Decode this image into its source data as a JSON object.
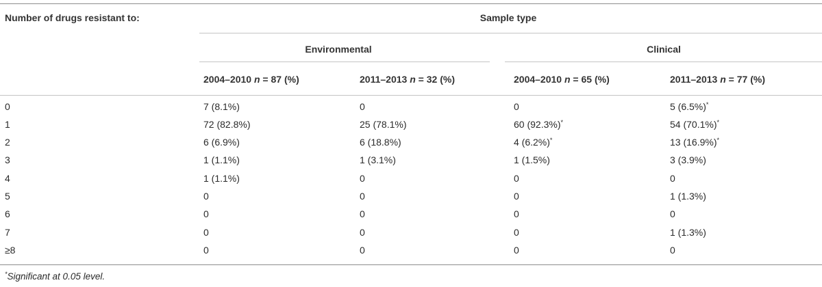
{
  "table": {
    "row_header": "Number of drugs resistant to:",
    "sample_type": "Sample type",
    "groups": [
      "Environmental",
      "Clinical"
    ],
    "columns": [
      {
        "years": "2004–2010",
        "n": "87",
        "pct": "(%)"
      },
      {
        "years": "2011–2013",
        "n": "32",
        "pct": "(%)"
      },
      {
        "years": "2004–2010",
        "n": "65",
        "pct": "(%)"
      },
      {
        "years": "2011–2013",
        "n": "77",
        "pct": "(%)"
      }
    ],
    "n_label": "n",
    "equals": "=",
    "rows": [
      {
        "label": "0",
        "cells": [
          {
            "v": "7 (8.1%)",
            "s": ""
          },
          {
            "v": "0",
            "s": ""
          },
          {
            "v": "0",
            "s": ""
          },
          {
            "v": "5 (6.5%)",
            "s": "*"
          }
        ]
      },
      {
        "label": "1",
        "cells": [
          {
            "v": "72 (82.8%)",
            "s": ""
          },
          {
            "v": "25 (78.1%)",
            "s": ""
          },
          {
            "v": "60 (92.3%)",
            "s": "*"
          },
          {
            "v": "54 (70.1%)",
            "s": "*"
          }
        ]
      },
      {
        "label": "2",
        "cells": [
          {
            "v": "6 (6.9%)",
            "s": ""
          },
          {
            "v": "6 (18.8%)",
            "s": ""
          },
          {
            "v": "4 (6.2%)",
            "s": "*"
          },
          {
            "v": "13 (16.9%)",
            "s": "*"
          }
        ]
      },
      {
        "label": "3",
        "cells": [
          {
            "v": "1 (1.1%)",
            "s": ""
          },
          {
            "v": "1 (3.1%)",
            "s": ""
          },
          {
            "v": "1 (1.5%)",
            "s": ""
          },
          {
            "v": "3 (3.9%)",
            "s": ""
          }
        ]
      },
      {
        "label": "4",
        "cells": [
          {
            "v": "1 (1.1%)",
            "s": ""
          },
          {
            "v": "0",
            "s": ""
          },
          {
            "v": "0",
            "s": ""
          },
          {
            "v": "0",
            "s": ""
          }
        ]
      },
      {
        "label": "5",
        "cells": [
          {
            "v": "0",
            "s": ""
          },
          {
            "v": "0",
            "s": ""
          },
          {
            "v": "0",
            "s": ""
          },
          {
            "v": "1 (1.3%)",
            "s": ""
          }
        ]
      },
      {
        "label": "6",
        "cells": [
          {
            "v": "0",
            "s": ""
          },
          {
            "v": "0",
            "s": ""
          },
          {
            "v": "0",
            "s": ""
          },
          {
            "v": "0",
            "s": ""
          }
        ]
      },
      {
        "label": "7",
        "cells": [
          {
            "v": "0",
            "s": ""
          },
          {
            "v": "0",
            "s": ""
          },
          {
            "v": "0",
            "s": ""
          },
          {
            "v": "1 (1.3%)",
            "s": ""
          }
        ]
      },
      {
        "label": "≥8",
        "cells": [
          {
            "v": "0",
            "s": ""
          },
          {
            "v": "0",
            "s": ""
          },
          {
            "v": "0",
            "s": ""
          },
          {
            "v": "0",
            "s": ""
          }
        ]
      }
    ]
  },
  "footnote": {
    "mark": "*",
    "text": "Significant at 0.05 level."
  }
}
